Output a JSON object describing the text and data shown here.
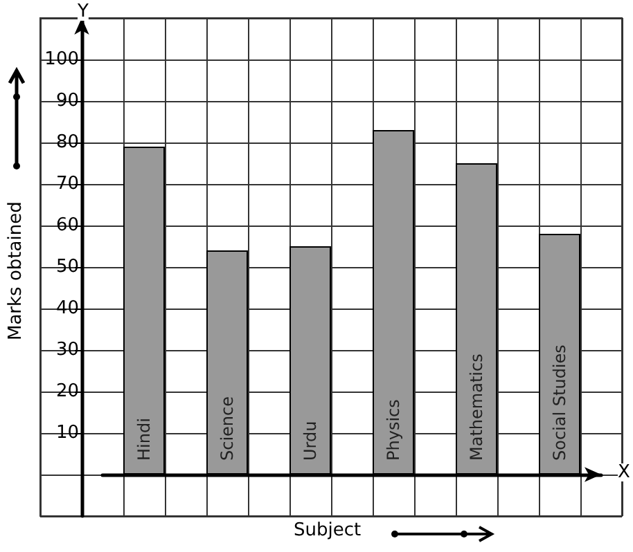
{
  "chart_data": {
    "type": "bar",
    "xlabel": "Subject",
    "ylabel": "Marks obtained",
    "categories": [
      "Hindi",
      "Science",
      "Urdu",
      "Physics",
      "Mathematics",
      "Social Studies"
    ],
    "values": [
      79,
      54,
      55,
      83,
      75,
      58
    ],
    "color": "#999999",
    "ylim": [
      -10,
      110
    ],
    "yticks": [
      10,
      20,
      30,
      40,
      50,
      60,
      70,
      80,
      90,
      100
    ],
    "grid": true,
    "annotations": [
      "Y",
      "X"
    ]
  }
}
